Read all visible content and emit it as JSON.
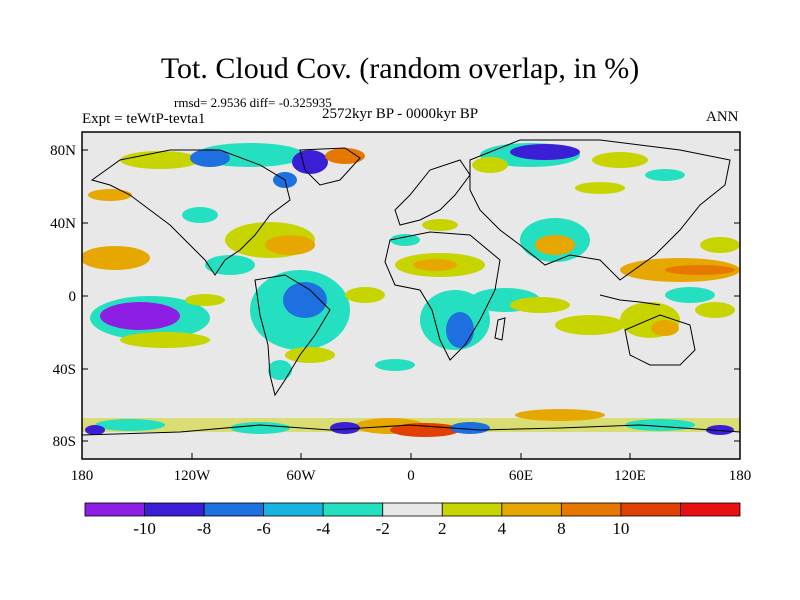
{
  "title": "Tot. Cloud Cov. (random overlap, in %)",
  "stats": "rmsd= 2.9536 diff= -0.325935",
  "experiment": "Expt = teWtP-tevta1",
  "period": "2572kyr BP - 0000kyr BP",
  "season": "ANN",
  "lat_labels": [
    "80N",
    "40N",
    "0",
    "40S",
    "80S"
  ],
  "lon_labels": [
    "180",
    "120W",
    "60W",
    "0",
    "60E",
    "120E",
    "180"
  ],
  "colorbar": {
    "labels": [
      "-10",
      "-8",
      "-6",
      "-4",
      "-2",
      "2",
      "4",
      "8",
      "10"
    ],
    "colors": [
      "#8d1ee3",
      "#3b1fd6",
      "#1e6fe0",
      "#18b4e0",
      "#25e0c0",
      "#e8e8e8",
      "#c8d400",
      "#e6a800",
      "#e67800",
      "#e04000",
      "#e81010"
    ]
  },
  "colors": {
    "background": "#e8e8e8",
    "coast": "#000000"
  }
}
